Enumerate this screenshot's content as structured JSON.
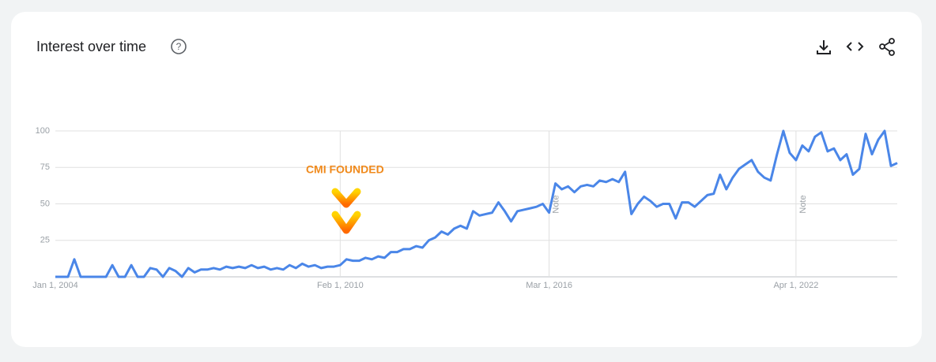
{
  "chart_data": {
    "type": "line",
    "title": "Interest over time",
    "color": "#4a86e8",
    "categories": [
      "Jan 1, 2004",
      null,
      null,
      null,
      null,
      null,
      null,
      null,
      null,
      null,
      null,
      null,
      null,
      null,
      null,
      null,
      null,
      null,
      null,
      null,
      null,
      null,
      null,
      null,
      null,
      null,
      null,
      null,
      null,
      null,
      null,
      null,
      null,
      null,
      null,
      null,
      null,
      null,
      null,
      null,
      null,
      null,
      null,
      null,
      null,
      "Feb 1, 2010",
      null,
      null,
      null,
      null,
      null,
      null,
      null,
      null,
      null,
      null,
      null,
      null,
      null,
      null,
      null,
      null,
      null,
      null,
      null,
      null,
      null,
      null,
      null,
      null,
      null,
      null,
      null,
      null,
      null,
      null,
      null,
      null,
      "Mar 1, 2016",
      null,
      null,
      null,
      null,
      null,
      null,
      null,
      null,
      null,
      null,
      null,
      null,
      null,
      null,
      null,
      null,
      null,
      null,
      null,
      null,
      null,
      null,
      null,
      null,
      null,
      null,
      null,
      null,
      null,
      null,
      null,
      null,
      null,
      null,
      null,
      null,
      null,
      null,
      "Apr 1, 2022",
      null,
      null,
      null,
      null,
      null,
      null,
      null,
      null,
      null,
      null,
      null,
      null,
      null,
      null,
      null,
      null
    ],
    "values": [
      0,
      0,
      0,
      12,
      0,
      0,
      0,
      0,
      0,
      8,
      0,
      0,
      8,
      0,
      0,
      6,
      5,
      0,
      6,
      4,
      0,
      6,
      3,
      5,
      5,
      6,
      5,
      7,
      6,
      7,
      6,
      8,
      6,
      7,
      5,
      6,
      5,
      8,
      6,
      9,
      7,
      8,
      6,
      7,
      7,
      8,
      12,
      11,
      11,
      13,
      12,
      14,
      13,
      17,
      17,
      19,
      19,
      21,
      20,
      25,
      27,
      31,
      29,
      33,
      35,
      33,
      45,
      42,
      43,
      44,
      51,
      45,
      38,
      45,
      46,
      47,
      48,
      50,
      44,
      64,
      60,
      62,
      58,
      62,
      63,
      62,
      66,
      65,
      67,
      65,
      72,
      43,
      50,
      55,
      52,
      48,
      50,
      50,
      40,
      51,
      51,
      48,
      52,
      56,
      57,
      70,
      60,
      68,
      74,
      77,
      80,
      72,
      68,
      66,
      84,
      100,
      85,
      80,
      90,
      86,
      96,
      99,
      86,
      88,
      80,
      84,
      70,
      74,
      98,
      84,
      94,
      100,
      76,
      78
    ],
    "ylim": [
      0,
      100
    ],
    "yticks": [
      25,
      50,
      75,
      100
    ],
    "grid": true,
    "annotations": [
      {
        "text": "CMI FOUNDED",
        "x": "Feb 1, 2010"
      },
      {
        "text": "Note",
        "x": "Mar 1, 2016"
      },
      {
        "text": "Note",
        "x": "Apr 1, 2022"
      }
    ]
  }
}
